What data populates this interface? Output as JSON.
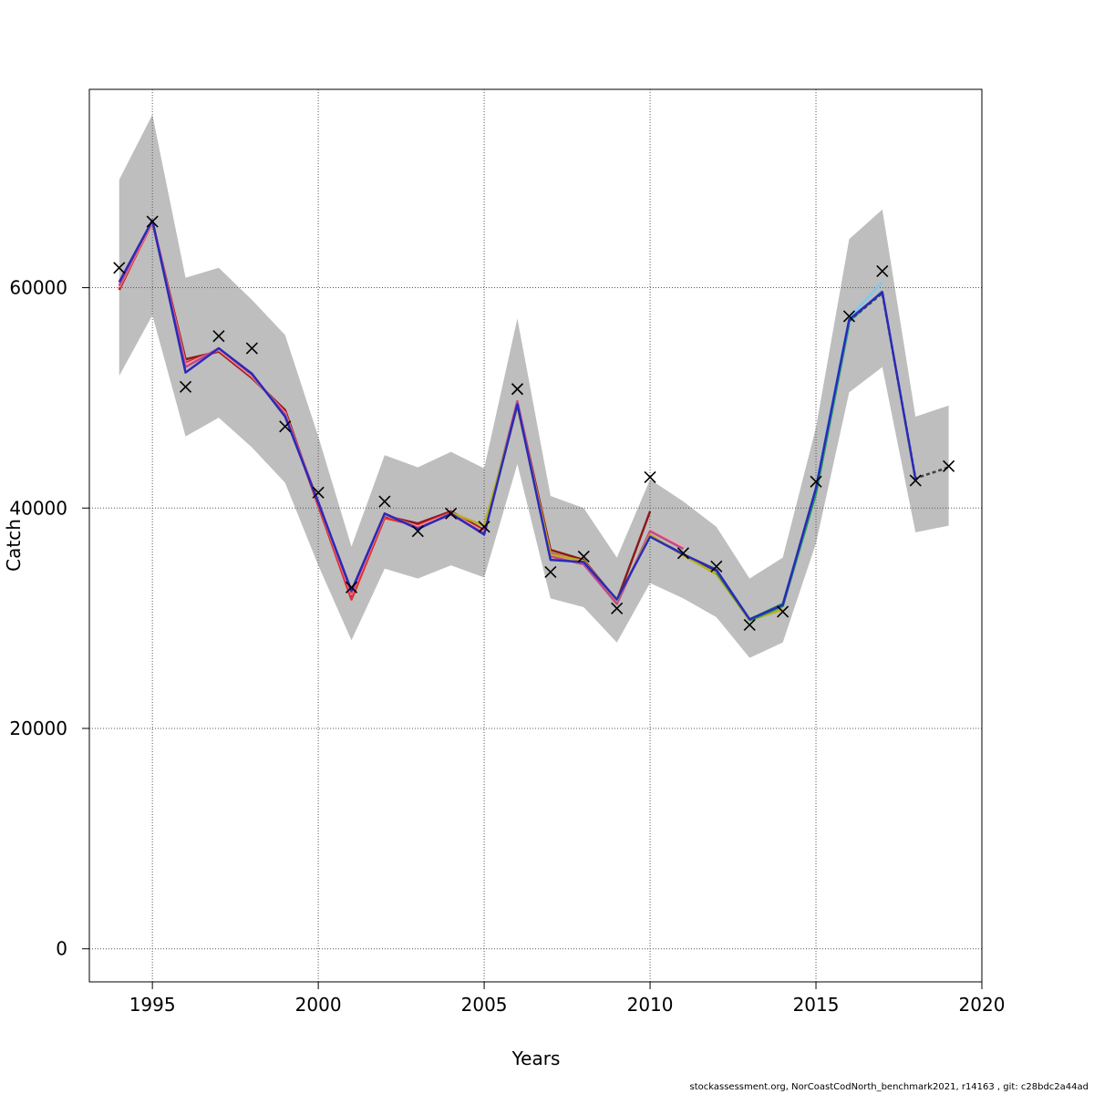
{
  "chart_data": {
    "type": "line",
    "xlabel": "Years",
    "ylabel": "Catch",
    "xlim": [
      1993.1,
      2020
    ],
    "ylim": [
      -3000,
      78000
    ],
    "x_ticks": [
      1995,
      2000,
      2005,
      2010,
      2015,
      2020
    ],
    "y_ticks": [
      0,
      20000,
      40000,
      60000
    ],
    "grid": true,
    "confidence_band": {
      "color": "#bebebe",
      "x": [
        1994,
        1995,
        1996,
        1997,
        1998,
        1999,
        2000,
        2001,
        2002,
        2003,
        2004,
        2005,
        2006,
        2007,
        2008,
        2009,
        2010,
        2011,
        2012,
        2013,
        2014,
        2015,
        2016,
        2017,
        2018,
        2019
      ],
      "upper": [
        69800,
        75700,
        60900,
        61800,
        58900,
        55700,
        46500,
        36500,
        44800,
        43700,
        45100,
        43600,
        57200,
        41100,
        40000,
        35500,
        42600,
        40600,
        38300,
        33600,
        35500,
        47300,
        64400,
        67100,
        48300,
        49300
      ],
      "lower": [
        52000,
        57500,
        46500,
        48200,
        45500,
        42300,
        34800,
        28000,
        34500,
        33600,
        34800,
        33700,
        44000,
        31800,
        31000,
        27800,
        33200,
        31800,
        30100,
        26400,
        27800,
        36800,
        50500,
        52800,
        37800,
        38400
      ]
    },
    "observed": {
      "marker": "x",
      "color": "#000000",
      "x": [
        1994,
        1995,
        1996,
        1997,
        1998,
        1999,
        2000,
        2001,
        2002,
        2003,
        2004,
        2005,
        2006,
        2007,
        2008,
        2009,
        2010,
        2011,
        2012,
        2013,
        2014,
        2015,
        2016,
        2017,
        2018,
        2019
      ],
      "y": [
        61800,
        66000,
        51000,
        55600,
        54500,
        47400,
        41400,
        32800,
        40600,
        37900,
        39500,
        38300,
        50800,
        34200,
        35600,
        30900,
        42800,
        35900,
        34700,
        29400,
        30600,
        42400,
        57400,
        61500,
        42500,
        43800
      ]
    },
    "series": [
      {
        "color": "#8b1a1a",
        "x": [
          1994,
          1995,
          1996,
          1997,
          1998,
          1999,
          2000,
          2001,
          2002,
          2003,
          2004,
          2005,
          2006,
          2007,
          2008,
          2009,
          2010
        ],
        "y": [
          59800,
          66000,
          53500,
          54200,
          51800,
          48900,
          40300,
          32000,
          39300,
          38600,
          39700,
          38000,
          49600,
          36200,
          35300,
          31600,
          39700
        ]
      },
      {
        "color": "#e03030",
        "x": [
          1994,
          1995,
          1996,
          1997,
          1998,
          1999,
          2000,
          2001,
          2002,
          2003,
          2004,
          2005,
          2006,
          2007,
          2008,
          2009
        ],
        "y": [
          59900,
          65900,
          53200,
          54300,
          51900,
          48700,
          40200,
          31700,
          39100,
          38400,
          39600,
          37900,
          49300,
          35900,
          35100,
          31500
        ]
      },
      {
        "color": "#f0a8a8",
        "x": [
          1994,
          1995,
          1996,
          1997,
          1998,
          1999,
          2000,
          2001,
          2002,
          2003,
          2004,
          2005,
          2006,
          2007,
          2008,
          2009,
          2010,
          2011
        ],
        "y": [
          60100,
          66000,
          53000,
          54400,
          52000,
          48600,
          40500,
          32200,
          39400,
          38300,
          39500,
          37800,
          49500,
          35700,
          35000,
          31400,
          38000,
          36500
        ]
      },
      {
        "color": "#c04890",
        "x": [
          1994,
          1995,
          1996,
          1997,
          1998,
          1999,
          2000,
          2001,
          2002,
          2003,
          2004,
          2005,
          2006,
          2007,
          2008,
          2009,
          2010,
          2011
        ],
        "y": [
          60200,
          66100,
          52800,
          54500,
          52100,
          48500,
          40600,
          32300,
          39500,
          38200,
          39400,
          37700,
          49700,
          35600,
          34900,
          31300,
          37900,
          36300
        ]
      },
      {
        "color": "#303030",
        "x": [
          2010,
          2011,
          2012
        ],
        "y": [
          37500,
          35800,
          34300
        ]
      },
      {
        "color": "#b8b020",
        "x": [
          2004,
          2005,
          2006,
          2007,
          2008,
          2009,
          2010,
          2011,
          2012,
          2013,
          2014
        ],
        "y": [
          39600,
          38400,
          49200,
          35800,
          35200,
          31600,
          37600,
          35700,
          34000,
          29800,
          30800
        ]
      },
      {
        "color": "#208060",
        "x": [
          2012,
          2013,
          2014,
          2015
        ],
        "y": [
          34200,
          29900,
          31300,
          41600
        ]
      },
      {
        "color": "#20a050",
        "x": [
          2013,
          2014,
          2015,
          2016
        ],
        "y": [
          29800,
          31100,
          41300,
          56700
        ]
      },
      {
        "color": "#40b0b0",
        "x": [
          2014,
          2015,
          2016,
          2017
        ],
        "y": [
          31200,
          41800,
          56900,
          59700
        ]
      },
      {
        "color": "#80c8f0",
        "x": [
          2015,
          2016,
          2017
        ],
        "y": [
          42000,
          57300,
          60500
        ]
      },
      {
        "color": "#404040",
        "dashed": true,
        "x": [
          2016,
          2017,
          2018,
          2019
        ],
        "y": [
          57000,
          59500,
          42700,
          43700
        ]
      },
      {
        "color": "#2a2ab8",
        "x": [
          1994,
          1995,
          1996,
          1997,
          1998,
          1999,
          2000,
          2001,
          2002,
          2003,
          2004,
          2005,
          2006,
          2007,
          2008,
          2009,
          2010,
          2011,
          2012,
          2013,
          2014,
          2015,
          2016,
          2017,
          2018
        ],
        "y": [
          60500,
          66100,
          52300,
          54500,
          52200,
          48300,
          40500,
          32500,
          39500,
          38100,
          39500,
          37600,
          49400,
          35300,
          35100,
          31700,
          37400,
          35800,
          34400,
          29900,
          31200,
          41800,
          57100,
          59600,
          42600
        ]
      }
    ]
  },
  "footer": {
    "text": "stockassessment.org, NorCoastCodNorth_benchmark2021, r14163 , git: c28bdc2a44ad"
  }
}
